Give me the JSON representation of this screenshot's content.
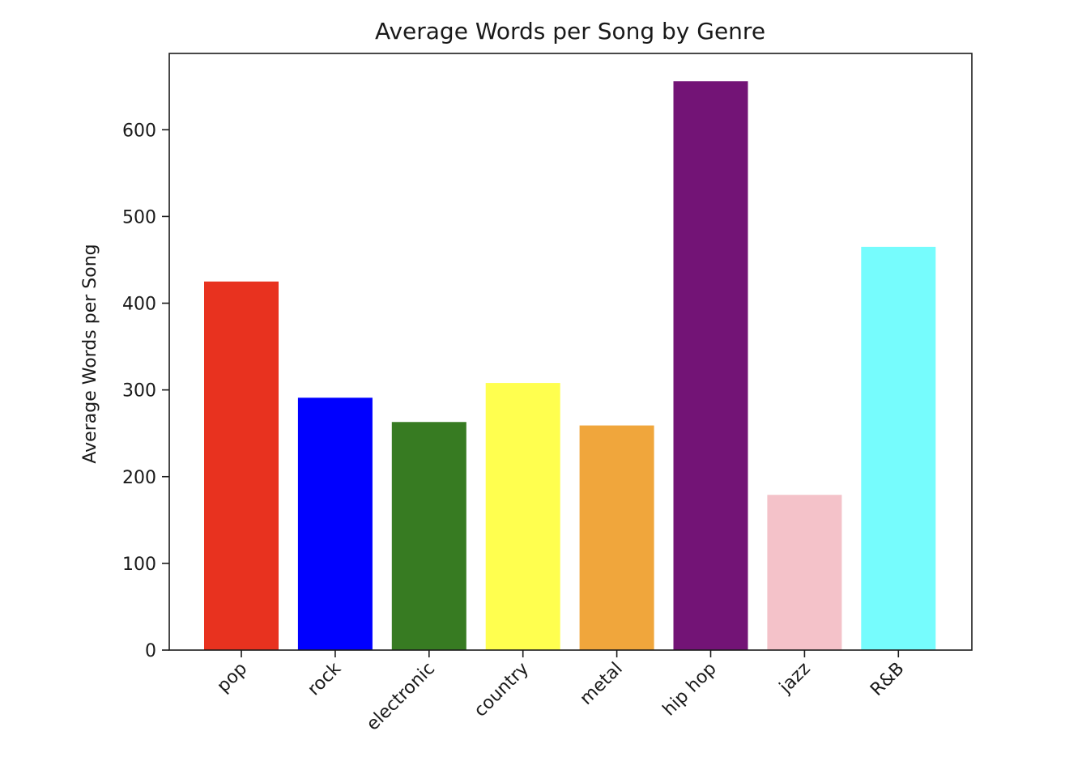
{
  "chart_data": {
    "type": "bar",
    "title": "Average Words per Song by Genre",
    "xlabel": "",
    "ylabel": "Average Words per Song",
    "categories": [
      "pop",
      "rock",
      "electronic",
      "country",
      "metal",
      "hip hop",
      "jazz",
      "R&B"
    ],
    "values": [
      425,
      291,
      263,
      308,
      259,
      656,
      179,
      465
    ],
    "colors": [
      "#e8321f",
      "#0000ff",
      "#377b22",
      "#ffff4f",
      "#f0a63c",
      "#731476",
      "#f4c2c9",
      "#76fcfd"
    ],
    "ylim": [
      0,
      688
    ],
    "yticks": [
      0,
      100,
      200,
      300,
      400,
      500,
      600
    ],
    "grid": false,
    "x_tick_rotation_deg": 45
  }
}
